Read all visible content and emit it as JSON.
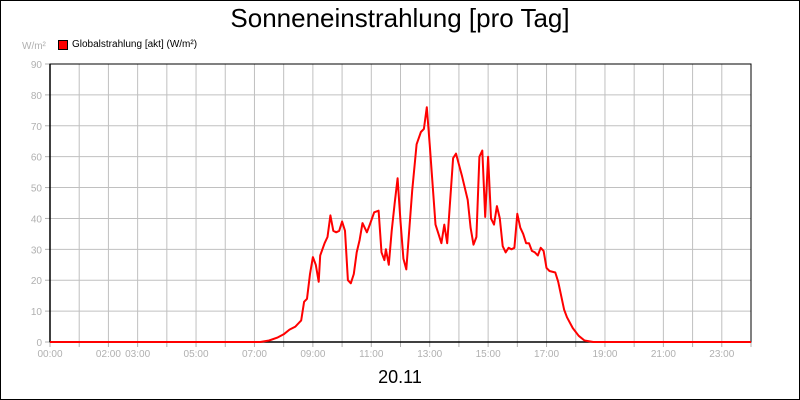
{
  "title": "Sonneneinstrahlung [pro Tag]",
  "unit_label": "W/m²",
  "legend": [
    {
      "label": "Globalstrahlung [akt] (W/m²)",
      "color": "#ff0000"
    }
  ],
  "date_label": "20.11",
  "chart_data": {
    "type": "line",
    "title": "Sonneneinstrahlung [pro Tag]",
    "xlabel": "20.11",
    "ylabel": "W/m²",
    "ylim": [
      0,
      90
    ],
    "xlim_hours": [
      0,
      24
    ],
    "y_ticks": [
      0,
      10,
      20,
      30,
      40,
      50,
      60,
      70,
      80,
      90
    ],
    "x_tick_labels": [
      {
        "h": 0,
        "label": "00:00"
      },
      {
        "h": 2,
        "label": "02:00"
      },
      {
        "h": 3,
        "label": "03:00"
      },
      {
        "h": 5,
        "label": "05:00"
      },
      {
        "h": 7,
        "label": "07:00"
      },
      {
        "h": 9,
        "label": "09:00"
      },
      {
        "h": 11,
        "label": "11:00"
      },
      {
        "h": 13,
        "label": "13:00"
      },
      {
        "h": 15,
        "label": "15:00"
      },
      {
        "h": 17,
        "label": "17:00"
      },
      {
        "h": 19,
        "label": "19:00"
      },
      {
        "h": 21,
        "label": "21:00"
      },
      {
        "h": 23,
        "label": "23:00"
      }
    ],
    "grid": true,
    "legend_position": "top-left",
    "series": [
      {
        "name": "Globalstrahlung [akt] (W/m²)",
        "color": "#ff0000",
        "points": [
          [
            0,
            0
          ],
          [
            7.2,
            0
          ],
          [
            7.5,
            0.5
          ],
          [
            7.8,
            1.5
          ],
          [
            8.0,
            2.5
          ],
          [
            8.2,
            4
          ],
          [
            8.4,
            5
          ],
          [
            8.5,
            6
          ],
          [
            8.6,
            7
          ],
          [
            8.7,
            13
          ],
          [
            8.8,
            14
          ],
          [
            8.9,
            22
          ],
          [
            9.0,
            27.5
          ],
          [
            9.1,
            25
          ],
          [
            9.2,
            19.5
          ],
          [
            9.25,
            28
          ],
          [
            9.4,
            32
          ],
          [
            9.5,
            34
          ],
          [
            9.6,
            41
          ],
          [
            9.7,
            36
          ],
          [
            9.8,
            35.5
          ],
          [
            9.9,
            36
          ],
          [
            10.0,
            39
          ],
          [
            10.1,
            36
          ],
          [
            10.2,
            20
          ],
          [
            10.3,
            19
          ],
          [
            10.4,
            22
          ],
          [
            10.5,
            29
          ],
          [
            10.6,
            33
          ],
          [
            10.7,
            38.5
          ],
          [
            10.85,
            35.5
          ],
          [
            10.95,
            38
          ],
          [
            11.1,
            42
          ],
          [
            11.25,
            42.5
          ],
          [
            11.35,
            29
          ],
          [
            11.45,
            26.5
          ],
          [
            11.5,
            30
          ],
          [
            11.6,
            25
          ],
          [
            11.7,
            36
          ],
          [
            11.8,
            45
          ],
          [
            11.9,
            53
          ],
          [
            12.0,
            39
          ],
          [
            12.1,
            27
          ],
          [
            12.2,
            23.5
          ],
          [
            12.4,
            49
          ],
          [
            12.55,
            64
          ],
          [
            12.7,
            68
          ],
          [
            12.8,
            69
          ],
          [
            12.9,
            76
          ],
          [
            13.0,
            64
          ],
          [
            13.2,
            38
          ],
          [
            13.3,
            35
          ],
          [
            13.4,
            32
          ],
          [
            13.5,
            38
          ],
          [
            13.6,
            32
          ],
          [
            13.8,
            59.5
          ],
          [
            13.9,
            61
          ],
          [
            14.1,
            54
          ],
          [
            14.3,
            46
          ],
          [
            14.4,
            37
          ],
          [
            14.5,
            31.5
          ],
          [
            14.6,
            34
          ],
          [
            14.7,
            60
          ],
          [
            14.8,
            62
          ],
          [
            14.9,
            40.5
          ],
          [
            15.0,
            60
          ],
          [
            15.1,
            40
          ],
          [
            15.2,
            38
          ],
          [
            15.3,
            44
          ],
          [
            15.4,
            40
          ],
          [
            15.5,
            31
          ],
          [
            15.6,
            29
          ],
          [
            15.7,
            30.5
          ],
          [
            15.8,
            30
          ],
          [
            15.9,
            30.5
          ],
          [
            16.0,
            41.5
          ],
          [
            16.1,
            37
          ],
          [
            16.2,
            35
          ],
          [
            16.3,
            32
          ],
          [
            16.4,
            32
          ],
          [
            16.5,
            29.5
          ],
          [
            16.6,
            29
          ],
          [
            16.7,
            28
          ],
          [
            16.8,
            30.5
          ],
          [
            16.9,
            29.5
          ],
          [
            17.0,
            24
          ],
          [
            17.1,
            23
          ],
          [
            17.3,
            22.5
          ],
          [
            17.4,
            19.5
          ],
          [
            17.6,
            10.5
          ],
          [
            17.7,
            8
          ],
          [
            17.9,
            4.5
          ],
          [
            18.1,
            2
          ],
          [
            18.3,
            0.5
          ],
          [
            18.6,
            0
          ],
          [
            24,
            0
          ]
        ]
      }
    ]
  }
}
